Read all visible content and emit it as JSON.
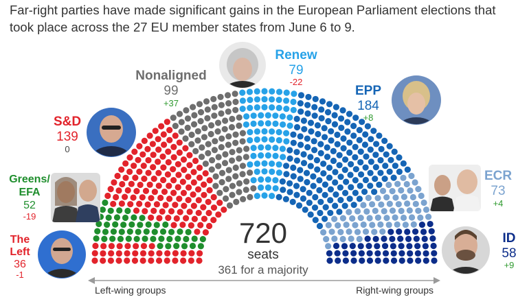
{
  "intro": "Far-right parties have made significant gains in the European Parliament elections that took place across the 27 EU member states from June 6 to 9.",
  "chart_data": {
    "type": "parliament",
    "total": "720",
    "total_unit": "seats",
    "majority_text": "361 for a majority",
    "axis_left": "Left-wing groups",
    "axis_right": "Right-wing groups",
    "groups": [
      {
        "name": "The Left",
        "seats": 36,
        "seats_label": "36",
        "change": "-1",
        "color": "#e2232b",
        "change_color": "#e2232b"
      },
      {
        "name": "Greens/EFA",
        "seats": 52,
        "seats_label": "52",
        "change": "-19",
        "color": "#1f8e2d",
        "change_color": "#e2232b"
      },
      {
        "name": "S&D",
        "seats": 139,
        "seats_label": "139",
        "change": "0",
        "color": "#e2232b",
        "change_color": "#444444"
      },
      {
        "name": "Nonaligned",
        "seats": 99,
        "seats_label": "99",
        "change": "+37",
        "color": "#6e6e6e",
        "change_color": "#2f9a2f"
      },
      {
        "name": "Renew",
        "seats": 79,
        "seats_label": "79",
        "change": "-22",
        "color": "#27a2e8",
        "change_color": "#e2232b"
      },
      {
        "name": "EPP",
        "seats": 184,
        "seats_label": "184",
        "change": "+8",
        "color": "#1565b5",
        "change_color": "#2f9a2f"
      },
      {
        "name": "ECR",
        "seats": 73,
        "seats_label": "73",
        "change": "+4",
        "color": "#7ba3cf",
        "change_color": "#2f9a2f"
      },
      {
        "name": "ID",
        "seats": 58,
        "seats_label": "58",
        "change": "+9",
        "color": "#0c2d8a",
        "change_color": "#2f9a2f"
      }
    ]
  }
}
